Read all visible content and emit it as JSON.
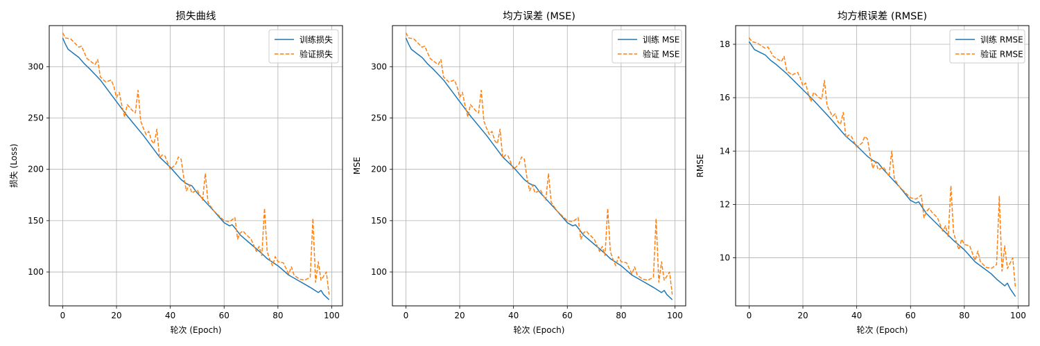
{
  "colors": {
    "train": "#1f77b4",
    "val": "#ff7f0e",
    "grid": "#b0b0b0"
  },
  "chart_data": [
    {
      "type": "line",
      "title": "损失曲线",
      "xlabel": "轮次 (Epoch)",
      "ylabel": "损失 (Loss)",
      "xlim": [
        -5,
        104
      ],
      "ylim": [
        67,
        340
      ],
      "xticks": [
        0,
        20,
        40,
        60,
        80,
        100
      ],
      "yticks": [
        100,
        150,
        200,
        250,
        300
      ],
      "grid": true,
      "legend_position": "top-right",
      "series": [
        {
          "name": "训练损失",
          "style": "solid",
          "x": [
            0,
            1,
            2,
            4,
            6,
            8,
            10,
            14,
            20,
            24,
            30,
            36,
            40,
            44,
            46,
            48,
            50,
            56,
            60,
            62,
            63,
            64,
            66,
            70,
            74,
            76,
            80,
            84,
            86,
            88,
            90,
            92,
            95,
            96,
            97,
            99
          ],
          "y": [
            328,
            322,
            317,
            313,
            309,
            303,
            298,
            287,
            266,
            252,
            233,
            212,
            202,
            190,
            186,
            184,
            177,
            160,
            148,
            145,
            146,
            143,
            136,
            127,
            118,
            113,
            106,
            97,
            94,
            91,
            88,
            85,
            80,
            82,
            78,
            73
          ]
        },
        {
          "name": "验证损失",
          "style": "dashed",
          "x": [
            0,
            1,
            3,
            6,
            7,
            9,
            12,
            13,
            14,
            16,
            18,
            19,
            20,
            21,
            22,
            23,
            24,
            26,
            27,
            28,
            29,
            30,
            31,
            32,
            33,
            34,
            35,
            36,
            37,
            38,
            40,
            42,
            43,
            44,
            45,
            46,
            47,
            48,
            50,
            52,
            53,
            54,
            56,
            58,
            60,
            62,
            64,
            65,
            66,
            67,
            68,
            70,
            72,
            73,
            74,
            75,
            76,
            77,
            78,
            79,
            80,
            82,
            84,
            85,
            86,
            88,
            90,
            92,
            93,
            94,
            95,
            96,
            97,
            98,
            99
          ],
          "y": [
            333,
            328,
            327,
            319,
            320,
            308,
            302,
            307,
            290,
            285,
            287,
            281,
            270,
            275,
            262,
            251,
            263,
            257,
            255,
            277,
            247,
            240,
            234,
            237,
            228,
            225,
            239,
            211,
            214,
            213,
            200,
            205,
            212,
            210,
            192,
            179,
            185,
            177,
            180,
            170,
            196,
            168,
            160,
            155,
            150,
            149,
            153,
            132,
            138,
            140,
            137,
            132,
            120,
            125,
            116,
            162,
            120,
            112,
            106,
            115,
            110,
            109,
            98,
            105,
            97,
            93,
            92,
            95,
            152,
            90,
            110,
            92,
            96,
            100,
            78
          ]
        }
      ]
    },
    {
      "type": "line",
      "title": "均方误差 (MSE)",
      "xlabel": "轮次 (Epoch)",
      "ylabel": "MSE",
      "xlim": [
        -5,
        104
      ],
      "ylim": [
        67,
        340
      ],
      "xticks": [
        0,
        20,
        40,
        60,
        80,
        100
      ],
      "yticks": [
        100,
        150,
        200,
        250,
        300
      ],
      "grid": true,
      "legend_position": "top-right",
      "series": [
        {
          "name": "训练 MSE",
          "style": "solid",
          "x": [
            0,
            1,
            2,
            4,
            6,
            8,
            10,
            14,
            20,
            24,
            30,
            36,
            40,
            44,
            46,
            48,
            50,
            56,
            60,
            62,
            63,
            64,
            66,
            70,
            74,
            76,
            80,
            84,
            86,
            88,
            90,
            92,
            95,
            96,
            97,
            99
          ],
          "y": [
            328,
            322,
            317,
            313,
            309,
            303,
            298,
            287,
            266,
            252,
            233,
            212,
            202,
            190,
            186,
            184,
            177,
            160,
            148,
            145,
            146,
            143,
            136,
            127,
            118,
            113,
            106,
            97,
            94,
            91,
            88,
            85,
            80,
            82,
            78,
            73
          ]
        },
        {
          "name": "验证 MSE",
          "style": "dashed",
          "x": [
            0,
            1,
            3,
            6,
            7,
            9,
            12,
            13,
            14,
            16,
            18,
            19,
            20,
            21,
            22,
            23,
            24,
            26,
            27,
            28,
            29,
            30,
            31,
            32,
            33,
            34,
            35,
            36,
            37,
            38,
            40,
            42,
            43,
            44,
            45,
            46,
            47,
            48,
            50,
            52,
            53,
            54,
            56,
            58,
            60,
            62,
            64,
            65,
            66,
            67,
            68,
            70,
            72,
            73,
            74,
            75,
            76,
            77,
            78,
            79,
            80,
            82,
            84,
            85,
            86,
            88,
            90,
            92,
            93,
            94,
            95,
            96,
            97,
            98,
            99
          ],
          "y": [
            333,
            328,
            327,
            319,
            320,
            308,
            302,
            307,
            290,
            285,
            287,
            281,
            270,
            275,
            262,
            251,
            263,
            257,
            255,
            277,
            247,
            240,
            234,
            237,
            228,
            225,
            239,
            211,
            214,
            213,
            200,
            205,
            212,
            210,
            192,
            179,
            185,
            177,
            180,
            170,
            196,
            168,
            160,
            155,
            150,
            149,
            153,
            132,
            138,
            140,
            137,
            132,
            120,
            125,
            116,
            162,
            120,
            112,
            106,
            115,
            110,
            109,
            98,
            105,
            97,
            93,
            92,
            95,
            152,
            90,
            110,
            92,
            96,
            100,
            78
          ]
        }
      ]
    },
    {
      "type": "line",
      "title": "均方根误差 (RMSE)",
      "xlabel": "轮次 (Epoch)",
      "ylabel": "RMSE",
      "xlim": [
        -5,
        104
      ],
      "ylim": [
        8.2,
        18.7
      ],
      "xticks": [
        0,
        20,
        40,
        60,
        80,
        100
      ],
      "yticks": [
        10,
        12,
        14,
        16,
        18
      ],
      "grid": true,
      "legend_position": "top-right",
      "series": [
        {
          "name": "训练 RMSE",
          "style": "solid",
          "x": [
            0,
            1,
            2,
            4,
            6,
            8,
            10,
            14,
            20,
            24,
            30,
            36,
            40,
            44,
            46,
            48,
            50,
            56,
            60,
            62,
            63,
            64,
            66,
            70,
            74,
            76,
            80,
            84,
            86,
            88,
            90,
            92,
            95,
            96,
            97,
            99
          ],
          "y": [
            18.1,
            17.95,
            17.8,
            17.7,
            17.6,
            17.4,
            17.25,
            16.9,
            16.3,
            15.9,
            15.25,
            14.55,
            14.2,
            13.8,
            13.65,
            13.55,
            13.3,
            12.65,
            12.15,
            12.05,
            12.1,
            11.95,
            11.65,
            11.25,
            10.85,
            10.65,
            10.3,
            9.85,
            9.7,
            9.55,
            9.4,
            9.2,
            8.95,
            9.05,
            8.85,
            8.55
          ]
        },
        {
          "name": "验证 RMSE",
          "style": "dashed",
          "x": [
            0,
            1,
            3,
            6,
            7,
            9,
            12,
            13,
            14,
            16,
            18,
            19,
            20,
            21,
            22,
            23,
            24,
            26,
            27,
            28,
            29,
            30,
            31,
            32,
            33,
            34,
            35,
            36,
            37,
            38,
            40,
            42,
            43,
            44,
            45,
            46,
            47,
            48,
            50,
            52,
            53,
            54,
            56,
            58,
            60,
            62,
            64,
            65,
            66,
            67,
            68,
            70,
            72,
            73,
            74,
            75,
            76,
            77,
            78,
            79,
            80,
            82,
            84,
            85,
            86,
            88,
            90,
            92,
            93,
            94,
            95,
            96,
            97,
            98,
            99
          ],
          "y": [
            18.25,
            18.1,
            18.05,
            17.85,
            17.9,
            17.55,
            17.35,
            17.55,
            17.0,
            16.85,
            16.95,
            16.75,
            16.45,
            16.55,
            16.15,
            15.85,
            16.2,
            16.0,
            15.95,
            16.65,
            15.7,
            15.5,
            15.3,
            15.4,
            15.1,
            15.0,
            15.45,
            14.5,
            14.6,
            14.55,
            14.15,
            14.3,
            14.55,
            14.45,
            13.85,
            13.35,
            13.6,
            13.3,
            13.4,
            13.05,
            14.0,
            12.95,
            12.65,
            12.45,
            12.25,
            12.2,
            12.35,
            11.5,
            11.75,
            11.85,
            11.7,
            11.5,
            11.0,
            11.2,
            10.8,
            12.7,
            10.95,
            10.6,
            10.3,
            10.7,
            10.5,
            10.45,
            9.9,
            10.25,
            9.85,
            9.65,
            9.6,
            9.75,
            12.3,
            9.5,
            10.45,
            9.6,
            9.8,
            10.0,
            8.85
          ]
        }
      ]
    }
  ]
}
